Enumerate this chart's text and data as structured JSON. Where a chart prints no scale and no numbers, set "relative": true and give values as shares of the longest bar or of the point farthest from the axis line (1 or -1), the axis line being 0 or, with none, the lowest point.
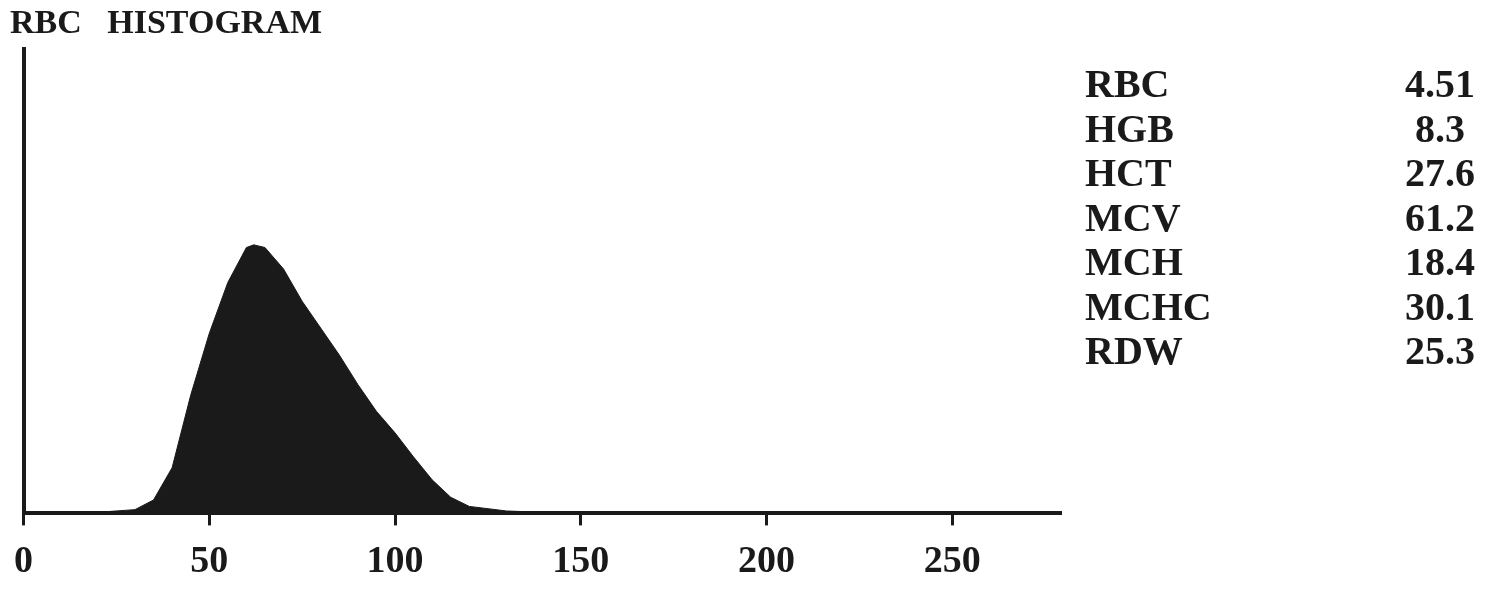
{
  "chart_data": [
    {
      "type": "area",
      "title": "RBC   HISTOGRAM",
      "relative": true,
      "marker": "none",
      "legend": false,
      "grid": false,
      "xlim": [
        0,
        279
      ],
      "xticks": [
        0,
        50,
        100,
        150,
        200,
        250
      ],
      "series": [
        {
          "color": "#1a1a1a",
          "x": [
            0,
            20,
            30,
            35,
            40,
            45,
            50,
            55,
            60,
            62,
            65,
            70,
            75,
            80,
            85,
            90,
            95,
            100,
            105,
            110,
            115,
            120,
            130,
            140,
            150,
            279
          ],
          "values": [
            0,
            0.004,
            0.014,
            0.05,
            0.17,
            0.44,
            0.67,
            0.86,
            0.99,
            1,
            0.99,
            0.91,
            0.79,
            0.69,
            0.59,
            0.48,
            0.38,
            0.3,
            0.21,
            0.125,
            0.06,
            0.026,
            0.009,
            0.004,
            0,
            0
          ]
        }
      ]
    },
    {
      "type": "other",
      "data_labels": true,
      "categories": [
        "RBC",
        "HGB",
        "HCT",
        "MCV",
        "MCH",
        "MCHC",
        "RDW"
      ],
      "values": [
        4.51,
        8.3,
        27.6,
        61.2,
        18.4,
        30.1,
        25.3
      ]
    }
  ]
}
